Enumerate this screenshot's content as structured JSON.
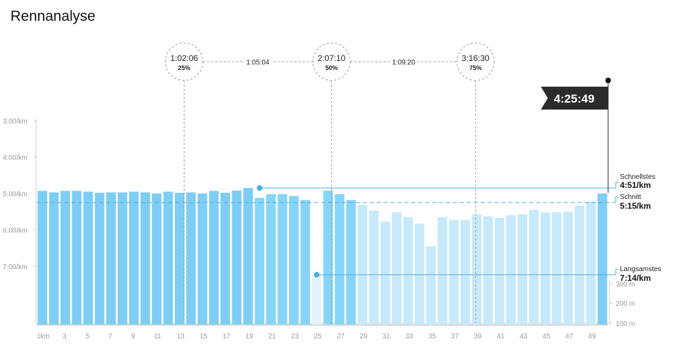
{
  "title": "Rennanalyse",
  "colors": {
    "bar_full": "#7ecdf5",
    "bar_second": "#86d4f9",
    "bar_light": "#c6e9fb",
    "bar_faint": "#e2f3fc",
    "accent_line": "#4aaee0",
    "dashed": "#999999",
    "flag_bg": "#2b2b2b",
    "axis_text": "#999999"
  },
  "finish_time": "4:25:49",
  "splits": [
    {
      "time": "1:02:06",
      "pct": "25%",
      "km": 13.4
    },
    {
      "time": "2:07:10",
      "pct": "50%",
      "km": 26.3
    },
    {
      "time": "3:16:30",
      "pct": "75%",
      "km": 38.9
    }
  ],
  "split_segments": [
    "1:05:04",
    "1:09:20"
  ],
  "stats": {
    "fastest_label": "Schnellstes",
    "fastest_value": "4:51/km",
    "fastest_pace": 4.85,
    "avg_label": "Schnitt",
    "avg_value": "5:15/km",
    "avg_pace": 5.25,
    "slowest_label": "Langsamstes",
    "slowest_value": "7:14/km",
    "slowest_pace": 7.233
  },
  "chart_data": {
    "type": "bar",
    "title": "Rennanalyse",
    "y_pace_ticks": [
      "3:00/km",
      "4:00/km",
      "5:00/km",
      "6:00/km",
      "7:00/km"
    ],
    "y_pace_range": [
      3.0,
      8.0
    ],
    "y_elev_ticks": [
      "300 m",
      "200 m",
      "100 m"
    ],
    "x_tick_labels": [
      "1km",
      "3",
      "5",
      "7",
      "9",
      "11",
      "13",
      "15",
      "17",
      "19",
      "21",
      "23",
      "25",
      "27",
      "29",
      "31",
      "33",
      "35",
      "37",
      "39",
      "41",
      "43",
      "45",
      "47",
      "49"
    ],
    "km_pace": [
      4.93,
      4.97,
      4.93,
      4.93,
      4.95,
      4.98,
      4.97,
      4.97,
      4.95,
      4.97,
      5.0,
      4.95,
      4.98,
      4.97,
      5.0,
      4.93,
      4.98,
      4.92,
      4.85,
      5.12,
      5.02,
      5.02,
      5.07,
      5.18,
      7.23,
      4.92,
      5.02,
      5.18,
      5.32,
      5.47,
      5.77,
      5.52,
      5.65,
      5.83,
      6.45,
      5.65,
      5.73,
      5.73,
      5.58,
      5.63,
      5.67,
      5.6,
      5.57,
      5.45,
      5.52,
      5.52,
      5.5,
      5.33,
      5.22,
      5.0
    ]
  }
}
